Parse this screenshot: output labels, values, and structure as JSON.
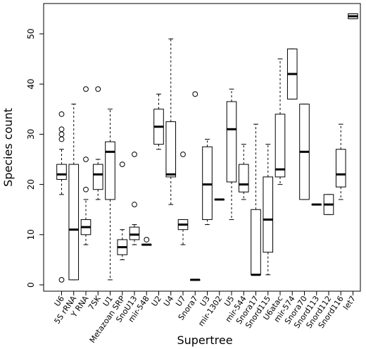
{
  "chart_data": {
    "type": "boxplot",
    "title": "",
    "xlabel": "Supertree",
    "ylabel": "Species count",
    "ylim": [
      -2,
      56
    ],
    "yticks": [
      0,
      10,
      20,
      30,
      40,
      50
    ],
    "grid": false,
    "legend": "none",
    "colors": {
      "box_fill": "#ffffff",
      "stroke": "#000000"
    },
    "categories": [
      "U6",
      "5S rRNA",
      "Y RNA",
      "7SK",
      "U1",
      "Metazoan SRP",
      "SnoU13",
      "mir-548",
      "U2",
      "U4",
      "U7",
      "Snora7",
      "U3",
      "mir-1302",
      "U5",
      "mir-544",
      "Snora17",
      "Snord115",
      "U6atac",
      "mir-574",
      "Snora70",
      "Snord113",
      "Snord112",
      "Snord116",
      "let7"
    ],
    "boxes": [
      {
        "name": "U6",
        "whisker_low": 18,
        "q1": 21,
        "median": 22,
        "q3": 24,
        "whisker_high": 27,
        "outliers": [
          1,
          29,
          30,
          31,
          34
        ]
      },
      {
        "name": "5S rRNA",
        "whisker_low": 1,
        "q1": 1,
        "median": 11,
        "q3": 24,
        "whisker_high": 36,
        "outliers": []
      },
      {
        "name": "Y RNA",
        "whisker_low": 8,
        "q1": 10,
        "median": 11.5,
        "q3": 13,
        "whisker_high": 17,
        "outliers": [
          19,
          25,
          39
        ]
      },
      {
        "name": "7SK",
        "whisker_low": 17,
        "q1": 19,
        "median": 22,
        "q3": 24,
        "whisker_high": 25,
        "outliers": [
          39
        ]
      },
      {
        "name": "U1",
        "whisker_low": 1,
        "q1": 17,
        "median": 26.5,
        "q3": 28.5,
        "whisker_high": 35,
        "outliers": []
      },
      {
        "name": "Metazoan SRP",
        "whisker_low": 5,
        "q1": 6,
        "median": 7.5,
        "q3": 9,
        "whisker_high": 11,
        "outliers": [
          24
        ]
      },
      {
        "name": "SnoU13",
        "whisker_low": 8,
        "q1": 9,
        "median": 10,
        "q3": 11.5,
        "whisker_high": 12,
        "outliers": [
          16,
          26
        ]
      },
      {
        "name": "mir-548",
        "whisker_low": 8,
        "q1": 8,
        "median": 8,
        "q3": 8,
        "whisker_high": 8,
        "outliers": [
          9
        ]
      },
      {
        "name": "U2",
        "whisker_low": 27,
        "q1": 28,
        "median": 31.5,
        "q3": 35,
        "whisker_high": 38,
        "outliers": []
      },
      {
        "name": "U4",
        "whisker_low": 16,
        "q1": 21.5,
        "median": 22,
        "q3": 32.5,
        "whisker_high": 49,
        "outliers": []
      },
      {
        "name": "U7",
        "whisker_low": 8,
        "q1": 11,
        "median": 12,
        "q3": 13,
        "whisker_high": 13,
        "outliers": [
          26
        ]
      },
      {
        "name": "Snora7",
        "whisker_low": 1,
        "q1": 1,
        "median": 1,
        "q3": 1,
        "whisker_high": 1,
        "outliers": [
          38
        ]
      },
      {
        "name": "U3",
        "whisker_low": 12,
        "q1": 13,
        "median": 20,
        "q3": 27.5,
        "whisker_high": 29,
        "outliers": []
      },
      {
        "name": "mir-1302",
        "whisker_low": 17,
        "q1": 17,
        "median": 17,
        "q3": 17,
        "whisker_high": 17,
        "outliers": []
      },
      {
        "name": "U5",
        "whisker_low": 13,
        "q1": 20.5,
        "median": 31,
        "q3": 36.5,
        "whisker_high": 39,
        "outliers": []
      },
      {
        "name": "mir-544",
        "whisker_low": 17,
        "q1": 18.5,
        "median": 20,
        "q3": 24,
        "whisker_high": 28,
        "outliers": []
      },
      {
        "name": "Snora17",
        "whisker_low": 2,
        "q1": 2,
        "median": 2,
        "q3": 15,
        "whisker_high": 32,
        "outliers": []
      },
      {
        "name": "Snord115",
        "whisker_low": 2,
        "q1": 6.5,
        "median": 13,
        "q3": 21.5,
        "whisker_high": 28,
        "outliers": []
      },
      {
        "name": "U6atac",
        "whisker_low": 20,
        "q1": 21.5,
        "median": 23,
        "q3": 34,
        "whisker_high": 45,
        "outliers": []
      },
      {
        "name": "mir-574",
        "whisker_low": 37,
        "q1": 37,
        "median": 42,
        "q3": 47,
        "whisker_high": 47,
        "outliers": []
      },
      {
        "name": "Snora70",
        "whisker_low": 17,
        "q1": 17,
        "median": 26.5,
        "q3": 36,
        "whisker_high": 36,
        "outliers": []
      },
      {
        "name": "Snord113",
        "whisker_low": 16,
        "q1": 16,
        "median": 16,
        "q3": 16,
        "whisker_high": 16,
        "outliers": []
      },
      {
        "name": "Snord112",
        "whisker_low": 14,
        "q1": 14,
        "median": 16,
        "q3": 18,
        "whisker_high": 18,
        "outliers": []
      },
      {
        "name": "Snord116",
        "whisker_low": 17,
        "q1": 19.5,
        "median": 22,
        "q3": 27,
        "whisker_high": 32,
        "outliers": []
      },
      {
        "name": "let7",
        "whisker_low": 53,
        "q1": 53,
        "median": 53.5,
        "q3": 54,
        "whisker_high": 54,
        "outliers": []
      }
    ]
  }
}
